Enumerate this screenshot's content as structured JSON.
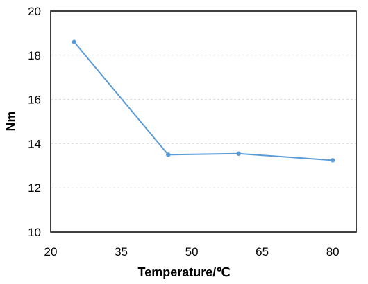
{
  "chart_data": {
    "type": "line",
    "title": "",
    "xlabel": "Temperature/℃",
    "ylabel": "Nm",
    "xlim": [
      20,
      85
    ],
    "ylim": [
      10,
      20
    ],
    "xticks": [
      20,
      35,
      50,
      65,
      80
    ],
    "yticks": [
      10,
      12,
      14,
      16,
      18,
      20
    ],
    "xtick_labels": [
      "20",
      "35",
      "50",
      "65",
      "80"
    ],
    "ytick_labels": [
      "10",
      "12",
      "14",
      "16",
      "18",
      "20"
    ],
    "grid": "horizontal dashed",
    "legend": "none",
    "series": [
      {
        "x": [
          25,
          45,
          60,
          80
        ],
        "y": [
          18.6,
          13.5,
          13.55,
          13.25
        ],
        "color": "#5b9bd5",
        "marker": "circle"
      }
    ]
  }
}
